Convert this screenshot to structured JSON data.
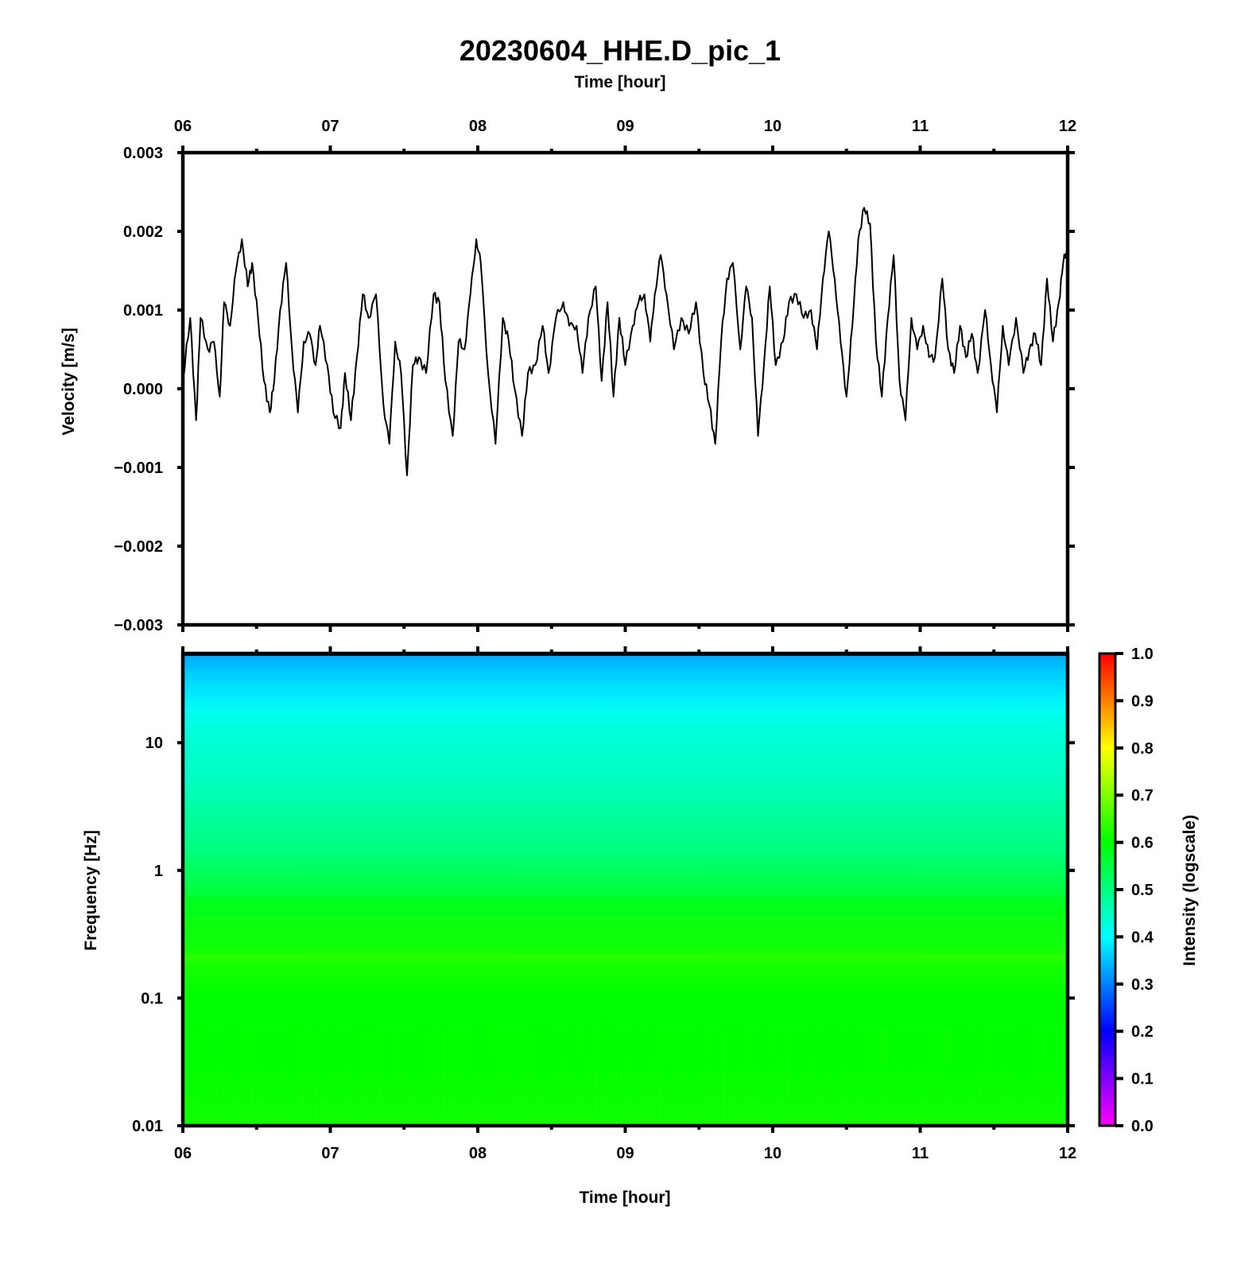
{
  "chart_data": [
    {
      "type": "line",
      "title": "20230604_HHE.D_pic_1",
      "top_xlabel": "Time [hour]",
      "ylabel": "Velocity [m/s]",
      "xlim": [
        6,
        12
      ],
      "ylim": [
        -0.003,
        0.003
      ],
      "x_ticks": [
        "06",
        "07",
        "08",
        "09",
        "10",
        "11",
        "12"
      ],
      "y_ticks": [
        "0.003",
        "0.002",
        "0.001",
        "0.000",
        "−0.001",
        "−0.002",
        "−0.003"
      ],
      "y_tick_values": [
        0.003,
        0.002,
        0.001,
        0,
        -0.001,
        -0.002,
        -0.003
      ],
      "line_color": "#000000",
      "series": [
        {
          "x": [
            6.0,
            6.05,
            6.09,
            6.12,
            6.17,
            6.21,
            6.25,
            6.28,
            6.32,
            6.36,
            6.4,
            6.44,
            6.47,
            6.51,
            6.55,
            6.59,
            6.62,
            6.66,
            6.7,
            6.74,
            6.78,
            6.82,
            6.86,
            6.9,
            6.93,
            6.98,
            7.02,
            7.07,
            7.1,
            7.14,
            7.18,
            7.22,
            7.26,
            7.31,
            7.36,
            7.4,
            7.44,
            7.48,
            7.52,
            7.56,
            7.6,
            7.65,
            7.7,
            7.74,
            7.78,
            7.83,
            7.87,
            7.91,
            7.95,
            7.99,
            8.02,
            8.07,
            8.12,
            8.17,
            8.21,
            8.25,
            8.3,
            8.34,
            8.39,
            8.44,
            8.48,
            8.53,
            8.58,
            8.62,
            8.67,
            8.71,
            8.75,
            8.8,
            8.84,
            8.88,
            8.92,
            8.96,
            9.0,
            9.05,
            9.09,
            9.13,
            9.17,
            9.2,
            9.24,
            9.28,
            9.33,
            9.38,
            9.43,
            9.48,
            9.53,
            9.57,
            9.61,
            9.65,
            9.69,
            9.73,
            9.78,
            9.82,
            9.86,
            9.9,
            9.94,
            9.98,
            10.02,
            10.07,
            10.11,
            10.16,
            10.21,
            10.26,
            10.3,
            10.34,
            10.38,
            10.42,
            10.46,
            10.5,
            10.54,
            10.58,
            10.62,
            10.66,
            10.7,
            10.74,
            10.78,
            10.82,
            10.86,
            10.9,
            10.94,
            10.98,
            11.02,
            11.06,
            11.1,
            11.15,
            11.19,
            11.23,
            11.27,
            11.31,
            11.35,
            11.39,
            11.44,
            11.48,
            11.52,
            11.56,
            11.6,
            11.65,
            11.7,
            11.74,
            11.78,
            11.82,
            11.86,
            11.9,
            11.94,
            11.97,
            12.0
          ],
          "y": [
            0.0001,
            0.0009,
            -0.0004,
            0.0009,
            0.0005,
            0.0006,
            -0.0001,
            0.0011,
            0.0008,
            0.0015,
            0.0019,
            0.0013,
            0.0016,
            0.0009,
            0.0001,
            -0.0003,
            0.0001,
            0.001,
            0.0016,
            0.0005,
            -0.0003,
            0.0006,
            0.0007,
            0.0003,
            0.0008,
            0.0003,
            -0.0003,
            -0.0005,
            0.0002,
            -0.0004,
            0.0004,
            0.0012,
            0.0009,
            0.0012,
            -0.0002,
            -0.0007,
            0.0006,
            0.0002,
            -0.0011,
            0.0003,
            0.0004,
            0.0002,
            0.0012,
            0.0011,
            0.0001,
            -0.0006,
            0.0006,
            0.0005,
            0.0012,
            0.0019,
            0.0016,
            0.0002,
            -0.0007,
            0.0009,
            0.0006,
            0.0,
            -0.0006,
            0.0002,
            0.0003,
            0.0008,
            0.0002,
            0.0009,
            0.0011,
            0.0008,
            0.0008,
            0.0002,
            0.0009,
            0.0013,
            0.0001,
            0.0011,
            -0.0001,
            0.0009,
            0.0003,
            0.0008,
            0.0011,
            0.0012,
            0.0006,
            0.0012,
            0.0017,
            0.0012,
            0.0005,
            0.0009,
            0.0007,
            0.0011,
            0.0002,
            -0.0002,
            -0.0007,
            0.0006,
            0.0014,
            0.0016,
            0.0005,
            0.0013,
            0.0009,
            -0.0006,
            0.0003,
            0.0013,
            0.0003,
            0.0006,
            0.0011,
            0.0012,
            0.0009,
            0.001,
            0.0005,
            0.0014,
            0.002,
            0.0014,
            0.0006,
            -0.0001,
            0.0008,
            0.0019,
            0.0023,
            0.0021,
            0.0006,
            -0.0001,
            0.0009,
            0.0017,
            0.0001,
            -0.0004,
            0.0009,
            0.0005,
            0.0008,
            0.0004,
            0.0004,
            0.0014,
            0.0005,
            0.0002,
            0.0008,
            0.0004,
            0.0007,
            0.0002,
            0.001,
            0.0003,
            -0.0003,
            0.0008,
            0.0003,
            0.0009,
            0.0002,
            0.0005,
            0.0007,
            0.0003,
            0.0014,
            0.0006,
            0.0011,
            0.0016,
            0.0018
          ]
        }
      ]
    },
    {
      "type": "heatmap",
      "xlabel": "Time [hour]",
      "ylabel": "Frequency [Hz]",
      "xlim": [
        6,
        12
      ],
      "ylim": [
        0.01,
        50
      ],
      "y_scale": "log",
      "x_ticks": [
        "06",
        "07",
        "08",
        "09",
        "10",
        "11",
        "12"
      ],
      "y_ticks": [
        "10",
        "1",
        "0.1",
        "0.01"
      ],
      "y_tick_values": [
        10,
        1,
        0.1,
        0.01
      ],
      "frequency_profile": {
        "frequency_hz": [
          50,
          35,
          25,
          18,
          12,
          5,
          1.5,
          0.6,
          0.4,
          0.2,
          0.1,
          0.03,
          0.01
        ],
        "intensity": [
          0.33,
          0.36,
          0.38,
          0.41,
          0.43,
          0.45,
          0.5,
          0.56,
          0.58,
          0.62,
          0.6,
          0.6,
          0.61
        ]
      },
      "colorbar": {
        "label": "Intensity (logscale)",
        "range": [
          0.0,
          1.0
        ],
        "ticks": [
          "1.0",
          "0.9",
          "0.8",
          "0.7",
          "0.6",
          "0.5",
          "0.4",
          "0.3",
          "0.2",
          "0.1",
          "0.0"
        ],
        "tick_values": [
          1.0,
          0.9,
          0.8,
          0.7,
          0.6,
          0.5,
          0.4,
          0.3,
          0.2,
          0.1,
          0.0
        ],
        "colormap": "rainbow",
        "colormap_stops": [
          "#ff00ff",
          "#0000ff",
          "#00ffff",
          "#00ff00",
          "#ffff00",
          "#ff0000"
        ]
      }
    }
  ]
}
